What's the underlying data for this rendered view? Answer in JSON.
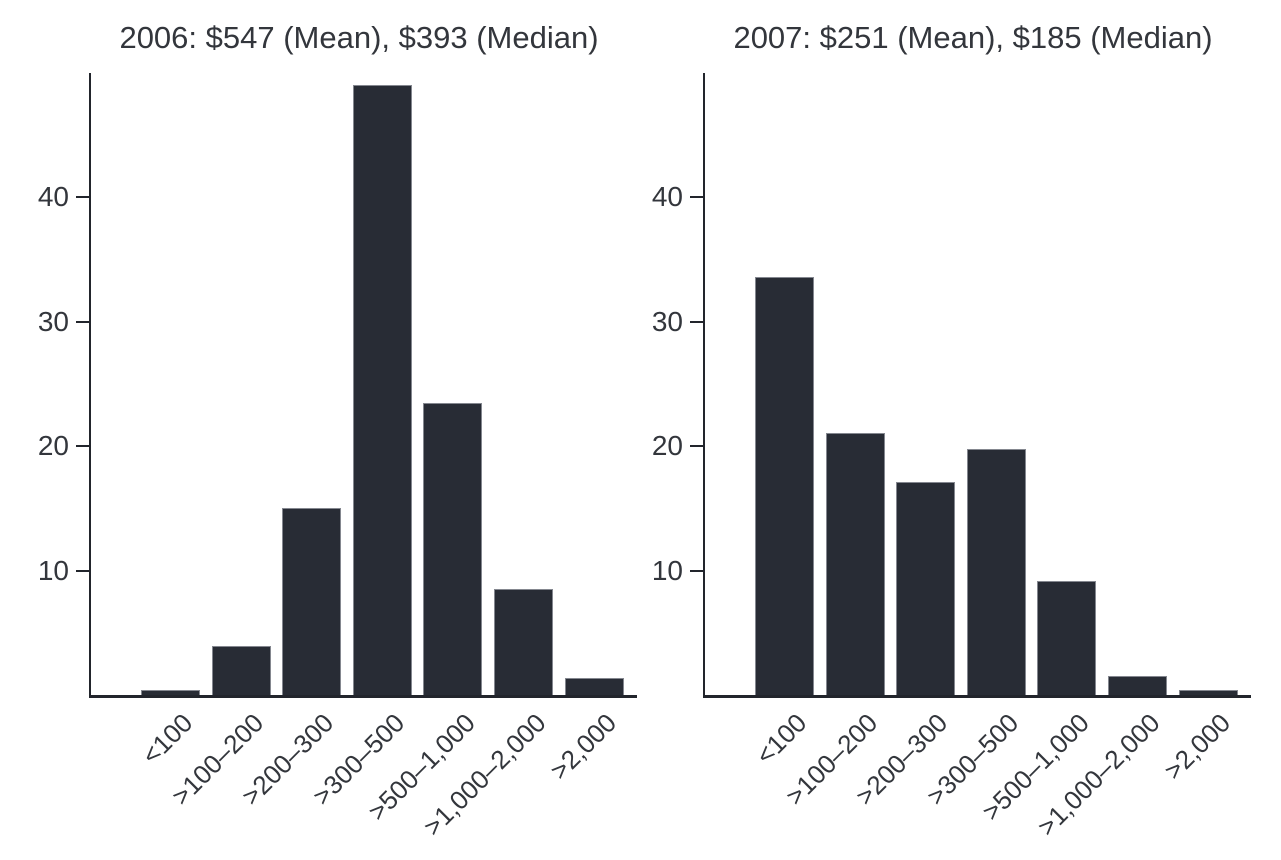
{
  "figure": {
    "background": "#ffffff"
  },
  "chart_data": [
    {
      "type": "bar",
      "title": "2006: $547 (Mean), $393 (Median)",
      "categories": [
        "<100",
        ">100–200",
        ">200–300",
        ">300–500",
        ">500–1,000",
        ">1,000–2,000",
        ">2,000"
      ],
      "values": [
        0.4,
        3.9,
        15,
        49,
        23.5,
        8.5,
        1.4
      ],
      "xlabel": "",
      "ylabel": "",
      "yticks": [
        10,
        20,
        30,
        40
      ],
      "ylim": [
        0,
        50
      ],
      "grid": false,
      "legend": "none",
      "x_label_rotation_deg": 45,
      "bar_color": "#282c35",
      "bar_outline": "#84878f",
      "axis_color": "#22252c",
      "text_color": "#33363c"
    },
    {
      "type": "bar",
      "title": "2007: $251 (Mean), $185 (Median)",
      "categories": [
        "<100",
        ">100–200",
        ">200–300",
        ">300–500",
        ">500–1,000",
        ">1,000–2,000",
        ">2,000"
      ],
      "values": [
        33.6,
        21.1,
        17.1,
        19.8,
        9.2,
        1.5,
        0.4
      ],
      "xlabel": "",
      "ylabel": "",
      "yticks": [
        10,
        20,
        30,
        40
      ],
      "ylim": [
        0,
        50
      ],
      "grid": false,
      "legend": "none",
      "x_label_rotation_deg": 45,
      "bar_color": "#282c35",
      "bar_outline": "#84878f",
      "axis_color": "#22252c",
      "text_color": "#33363c"
    }
  ]
}
